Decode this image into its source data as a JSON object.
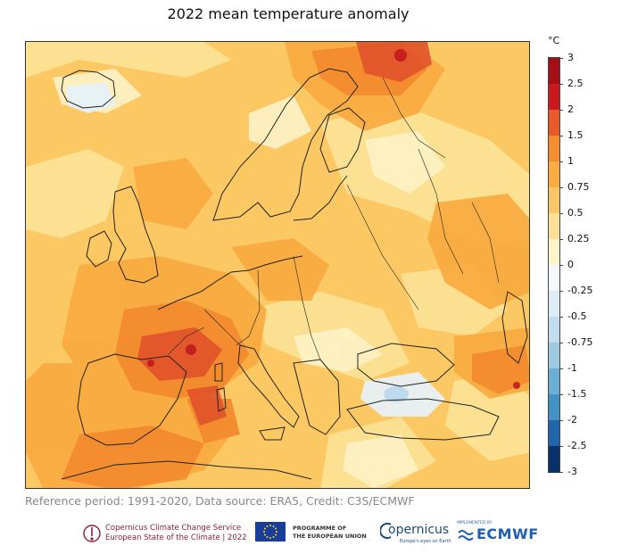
{
  "title": "2022 mean temperature anomaly",
  "colorbar": {
    "unit": "°C",
    "labels": [
      "3",
      "2.5",
      "2",
      "1.5",
      "1",
      "0.75",
      "0.5",
      "0.25",
      "0",
      "-0.25",
      "-0.5",
      "-0.75",
      "-1",
      "-1.5",
      "-2",
      "-2.5",
      "-3"
    ],
    "colors": [
      "#a50f15",
      "#cb181d",
      "#ea5a28",
      "#f48c30",
      "#f9ab3f",
      "#fbc464",
      "#fde096",
      "#fff3c8",
      "#f3f9fd",
      "#dcedf8",
      "#c2ddf0",
      "#9ecae1",
      "#6baed6",
      "#4292c6",
      "#2166ac",
      "#08306b"
    ]
  },
  "map_colors": {
    "background": "#fcc864",
    "light": "#fde396",
    "pale": "#fff1c4",
    "warm": "#f9aa40",
    "hot": "#f28a2e",
    "veryhot": "#e2542a",
    "extreme": "#c21b1d",
    "cool": "#e6f2fa",
    "cold": "#b8d8ee",
    "coast": "#222222"
  },
  "reference_text": "Reference period: 1991-2020, Data source: ERA5, Credit: C3S/ECMWF",
  "footer": {
    "c3s_line1": "Copernicus Climate Change Service",
    "c3s_line2": "European State of the Climate | 2022",
    "eu_line1": "PROGRAMME OF",
    "eu_line2": "THE EUROPEAN UNION",
    "copernicus_word": "opernicus",
    "copernicus_sub": "Europe's eyes on Earth",
    "ecmwf_sub": "IMPLEMENTED BY",
    "ecmwf_word": "ECMWF"
  }
}
